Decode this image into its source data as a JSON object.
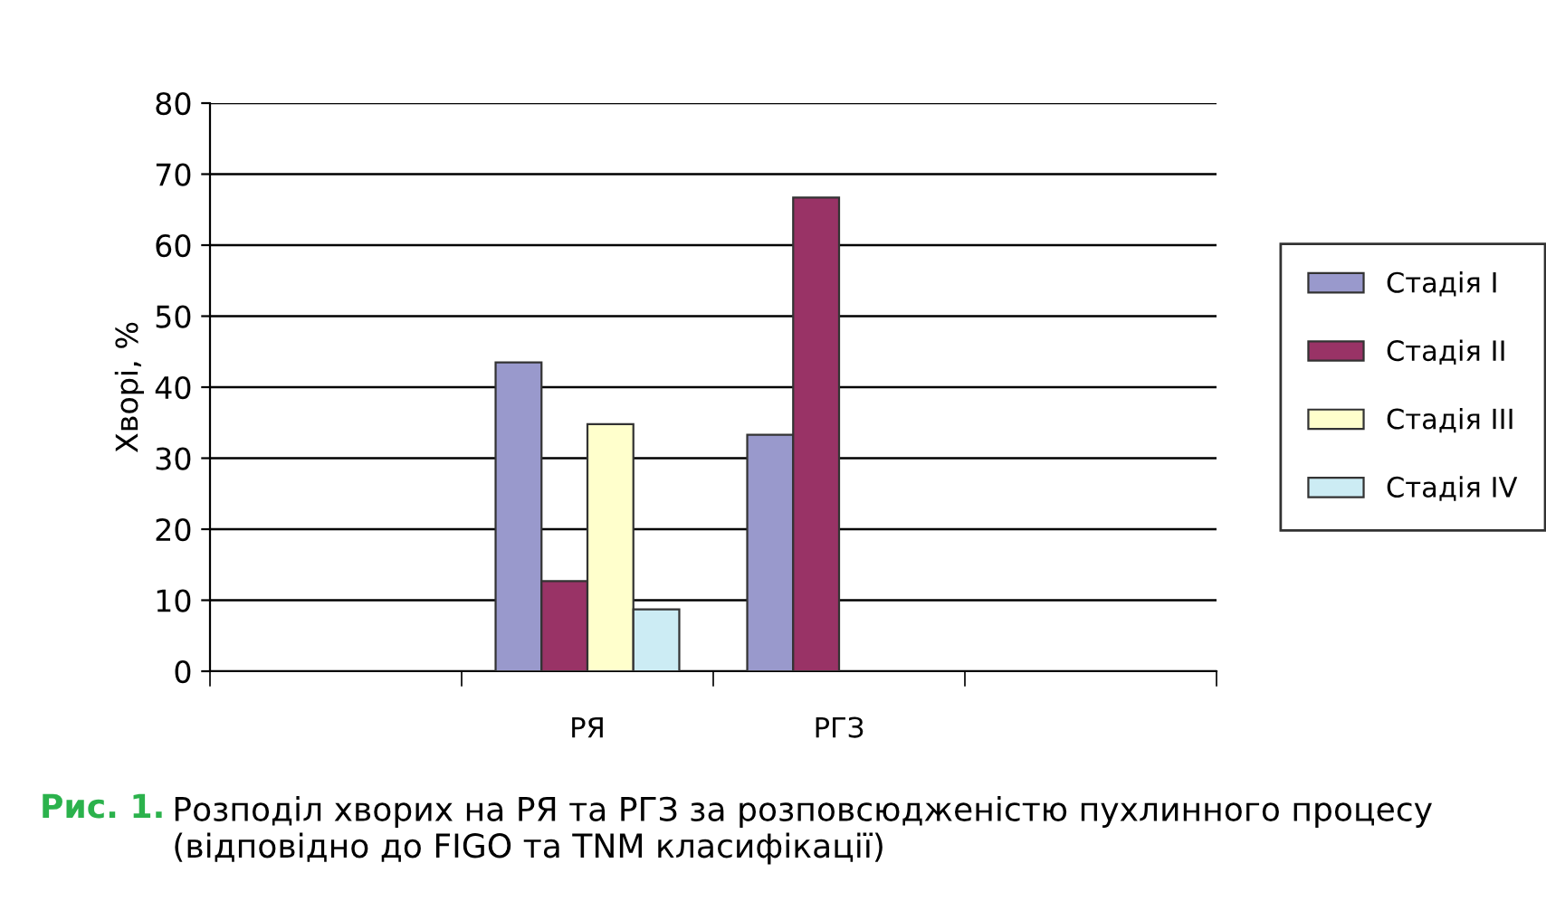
{
  "chart_data": {
    "type": "bar",
    "ylabel": "Хворі, %",
    "categories": [
      null,
      "РЯ",
      "РГЗ",
      null
    ],
    "series": [
      {
        "name": "Стадія I",
        "color": "#9999cc",
        "values": [
          null,
          43.5,
          33.3,
          null
        ]
      },
      {
        "name": "Стадія II",
        "color": "#993366",
        "values": [
          null,
          12.7,
          66.7,
          null
        ]
      },
      {
        "name": "Стадія III",
        "color": "#ffffcc",
        "values": [
          null,
          34.8,
          null,
          null
        ]
      },
      {
        "name": "Стадія IV",
        "color": "#ccecf4",
        "values": [
          null,
          8.7,
          null,
          null
        ]
      }
    ],
    "ylim": [
      0,
      80
    ],
    "yticks": [
      0,
      10,
      20,
      30,
      40,
      50,
      60,
      70,
      80
    ],
    "grid": "y",
    "legend": "right",
    "annotations": [
      "Рис. 1.",
      "Розподіл хворих на РЯ та РГЗ за розповсюдженістю пухлинного процесу (відповідно до FIGO та TNM класифікації)"
    ]
  }
}
